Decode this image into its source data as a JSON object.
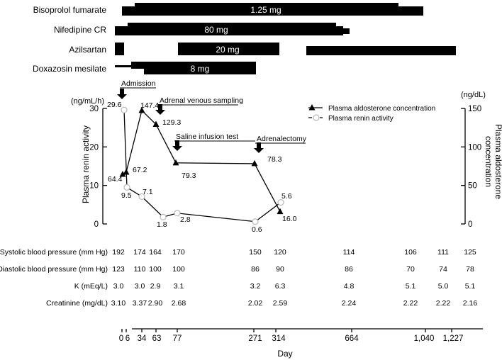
{
  "chart_data": {
    "type": "line",
    "medications": {
      "drugs": [
        {
          "name": "Bisoprolol fumarate",
          "dose": "1.25 mg"
        },
        {
          "name": "Nifedipine CR",
          "dose": "80 mg"
        },
        {
          "name": "Azilsartan",
          "dose": "20 mg"
        },
        {
          "name": "Doxazosin mesilate",
          "dose": "8 mg"
        }
      ]
    },
    "events": [
      {
        "label": "Admission",
        "day": 0
      },
      {
        "label": "Adrenal venous sampling",
        "day": 34
      },
      {
        "label": "Saline infusion test",
        "day": 77
      },
      {
        "label": "Adrenalectomy",
        "day": 271
      }
    ],
    "left_axis": {
      "unit": "(ng/mL/h)",
      "label": "Plasma renin activity",
      "ylim": [
        0,
        30
      ],
      "ticks": [
        "0",
        "10",
        "20",
        "30"
      ]
    },
    "right_axis": {
      "unit": "(ng/dL)",
      "label_line1": "Plasma aldosterone",
      "label_line2": "concentration",
      "ylim": [
        0,
        150
      ],
      "ticks": [
        "0",
        "50",
        "100",
        "150"
      ]
    },
    "series": [
      {
        "name": "Plasma aldosterone concentration",
        "marker": "triangle",
        "axis": "right",
        "points": [
          {
            "label": "64.4",
            "value": 64.4
          },
          {
            "label": "67.2",
            "value": 67.2
          },
          {
            "label": "147.4",
            "value": 147.4
          },
          {
            "label": "129.3",
            "value": 129.3
          },
          {
            "label": "79.3",
            "value": 79.3
          },
          {
            "label": "78.3",
            "value": 78.3
          },
          {
            "label": "16.0",
            "value": 16.0
          }
        ]
      },
      {
        "name": "Plasma renin activity",
        "marker": "open-circle",
        "axis": "left",
        "points": [
          {
            "label": "29.6",
            "value": 29.6
          },
          {
            "label": "9.5",
            "value": 9.5
          },
          {
            "label": "7.1",
            "value": 7.1
          },
          {
            "label": "1.8",
            "value": 1.8
          },
          {
            "label": "2.8",
            "value": 2.8
          },
          {
            "label": "0.6",
            "value": 0.6
          },
          {
            "label": "5.6",
            "value": 5.6
          }
        ]
      }
    ],
    "table": {
      "rows": [
        {
          "label": "Systolic blood pressure (mm Hg)",
          "values": [
            "192",
            "174",
            "164",
            "170",
            "150",
            "120",
            "114",
            "106",
            "111",
            "125"
          ]
        },
        {
          "label": "Diastolic blood pressure (mm Hg)",
          "values": [
            "123",
            "110",
            "100",
            "100",
            "86",
            "90",
            "86",
            "70",
            "74",
            "78"
          ]
        },
        {
          "label": "K (mEq/L)",
          "values": [
            "3.0",
            "3.0",
            "2.9",
            "3.1",
            "3.2",
            "6.3",
            "4.8",
            "5.1",
            "5.0",
            "5.1"
          ]
        },
        {
          "label": "Creatinine (mg/dL)",
          "values": [
            "3.10",
            "3.37",
            "2.90",
            "2.68",
            "2.02",
            "2.59",
            "2.24",
            "2.22",
            "2.22",
            "2.16"
          ]
        }
      ]
    },
    "x_axis": {
      "label": "Day",
      "ticks": [
        "0",
        "6",
        "34",
        "63",
        "77",
        "271",
        "314",
        "664",
        "1,040",
        "1,227"
      ]
    }
  }
}
